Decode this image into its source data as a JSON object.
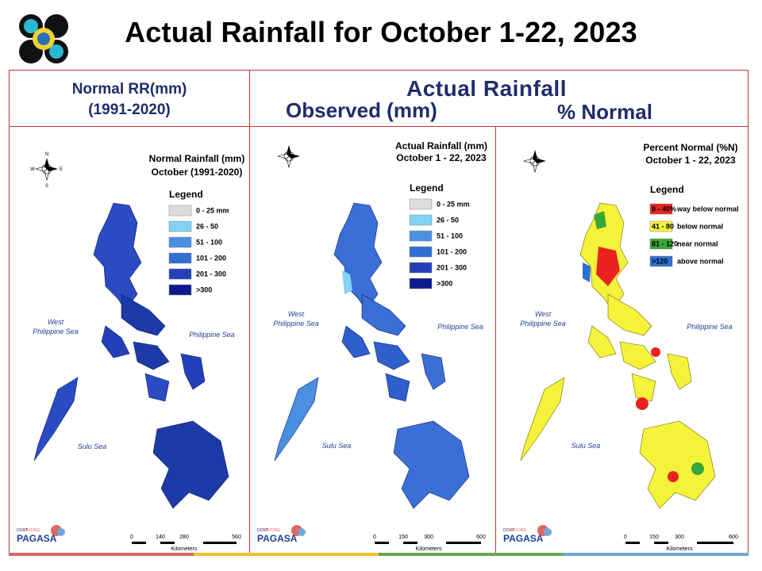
{
  "title": "Actual Rainfall for October 1-22, 2023",
  "header": {
    "normal_line1": "Normal RR(mm)",
    "normal_line2": "(1991-2020)",
    "actual": "Actual Rainfall",
    "observed": "Observed (mm)",
    "percent": "% Normal"
  },
  "panels": [
    {
      "map_title_1": "Normal Rainfall (mm)",
      "map_title_2": "October (1991-2020)",
      "legend_title": "Legend",
      "legend": [
        {
          "label": "0 - 25 mm",
          "color": "#dcdcdc"
        },
        {
          "label": "26 - 50",
          "color": "#7fd3f5"
        },
        {
          "label": "51 - 100",
          "color": "#4a90e2"
        },
        {
          "label": "101 - 200",
          "color": "#2f6fd1"
        },
        {
          "label": "201 - 300",
          "color": "#2340b8"
        },
        {
          "label": ">300",
          "color": "#0b1a8c"
        }
      ],
      "sea_west": [
        "West",
        "Philippine Sea"
      ],
      "sea_east": "Philippine Sea",
      "sea_south": "Sulu Sea",
      "scale_ticks": [
        "0",
        "140",
        "280",
        "560"
      ],
      "scale_unit": "Kilometers"
    },
    {
      "map_title_1": "Actual Rainfall (mm)",
      "map_title_2": "October 1 - 22, 2023",
      "legend_title": "Legend",
      "legend": [
        {
          "label": "0 - 25 mm",
          "color": "#dcdcdc"
        },
        {
          "label": "26 - 50",
          "color": "#7fd3f5"
        },
        {
          "label": "51 - 100",
          "color": "#4a90e2"
        },
        {
          "label": "101 - 200",
          "color": "#2f6fd1"
        },
        {
          "label": "201 - 300",
          "color": "#2340b8"
        },
        {
          "label": ">300",
          "color": "#0b1a8c"
        }
      ],
      "sea_west": [
        "West",
        "Philippine Sea"
      ],
      "sea_east": "Philippine Sea",
      "sea_south": "Sulu Sea",
      "scale_ticks": [
        "0",
        "150",
        "300",
        "600"
      ],
      "scale_unit": "Kilometers"
    },
    {
      "map_title_1": "Percent Normal (%N)",
      "map_title_2": "October 1 - 22, 2023",
      "legend_title": "Legend",
      "legend": [
        {
          "label": "0 - 40%",
          "desc": "way below normal",
          "color": "#e8231f"
        },
        {
          "label": "41 - 80",
          "desc": "below normal",
          "color": "#f5f23a"
        },
        {
          "label": "81 - 120",
          "desc": "near normal",
          "color": "#3aa63a"
        },
        {
          "label": ">120",
          "desc": "above normal",
          "color": "#2f6fd1"
        }
      ],
      "sea_west": [
        "West",
        "Philippine Sea"
      ],
      "sea_east": "Philippine Sea",
      "sea_south": "Sulu Sea",
      "scale_ticks": [
        "0",
        "150",
        "300",
        "600"
      ],
      "scale_unit": "Kilometers"
    }
  ],
  "agency_logo_text": [
    "DOST",
    "PAGASA",
    "DAYONG"
  ],
  "colors": {
    "frame": "#c0392b",
    "header_text": "#1f2d6b",
    "footer_stripes": [
      "#e06666",
      "#f1c232",
      "#6aa84f",
      "#6fa8dc"
    ]
  }
}
